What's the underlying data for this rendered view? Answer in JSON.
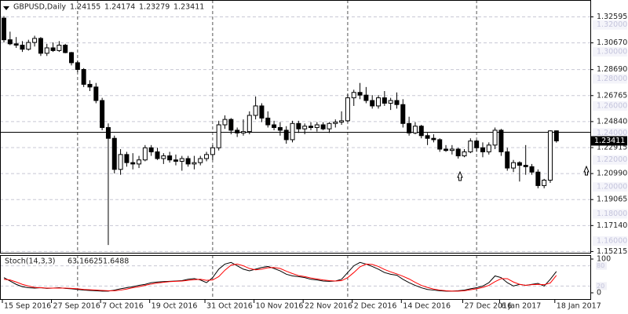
{
  "chart_data": [
    {
      "type": "candlestick",
      "symbol": "GBPUSD,Daily",
      "open": [
        1.325,
        1.309,
        1.306,
        1.305,
        1.302,
        1.307,
        1.31,
        1.299,
        1.303,
        1.301,
        1.305,
        1.2995,
        1.292,
        1.287,
        1.276,
        1.274,
        1.264,
        1.244,
        1.236,
        1.213,
        1.224,
        1.218,
        1.217,
        1.22,
        1.229,
        1.226,
        1.221,
        1.223,
        1.22,
        1.219,
        1.221,
        1.217,
        1.218,
        1.221,
        1.224,
        1.229,
        1.246,
        1.25,
        1.242,
        1.24,
        1.241,
        1.253,
        1.26,
        1.251,
        1.246,
        1.244,
        1.242,
        1.235,
        1.247,
        1.243,
        1.245,
        1.244,
        1.246,
        1.243,
        1.247,
        1.248,
        1.249,
        1.266,
        1.27,
        1.268,
        1.264,
        1.26,
        1.266,
        1.262,
        1.264,
        1.261,
        1.247,
        1.24,
        1.245,
        1.238,
        1.236,
        1.235,
        1.228,
        1.227,
        1.228,
        1.223,
        1.226,
        1.234,
        1.229,
        1.226,
        1.231,
        1.242,
        1.226,
        1.214,
        1.218,
        1.216,
        1.215,
        1.211,
        1.201,
        1.205,
        1.24155
      ],
      "high": [
        1.3265,
        1.315,
        1.311,
        1.308,
        1.309,
        1.312,
        1.311,
        1.306,
        1.307,
        1.308,
        1.306,
        1.3,
        1.2935,
        1.288,
        1.279,
        1.277,
        1.266,
        1.247,
        1.238,
        1.228,
        1.226,
        1.225,
        1.223,
        1.231,
        1.231,
        1.229,
        1.225,
        1.226,
        1.224,
        1.223,
        1.223,
        1.223,
        1.223,
        1.226,
        1.231,
        1.249,
        1.253,
        1.251,
        1.244,
        1.25,
        1.256,
        1.267,
        1.262,
        1.256,
        1.249,
        1.248,
        1.245,
        1.249,
        1.249,
        1.247,
        1.248,
        1.248,
        1.248,
        1.248,
        1.25,
        1.256,
        1.269,
        1.272,
        1.277,
        1.274,
        1.268,
        1.268,
        1.271,
        1.266,
        1.27,
        1.265,
        1.252,
        1.248,
        1.246,
        1.24,
        1.239,
        1.236,
        1.231,
        1.231,
        1.229,
        1.228,
        1.236,
        1.235,
        1.233,
        1.233,
        1.244,
        1.243,
        1.229,
        1.22,
        1.219,
        1.231,
        1.217,
        1.213,
        1.206,
        1.242,
        1.24174
      ],
      "low": [
        1.307,
        1.305,
        1.303,
        1.3,
        1.301,
        1.304,
        1.297,
        1.297,
        1.3,
        1.3,
        1.299,
        1.29,
        1.285,
        1.274,
        1.271,
        1.262,
        1.242,
        1.157,
        1.21,
        1.209,
        1.215,
        1.213,
        1.214,
        1.219,
        1.223,
        1.22,
        1.217,
        1.218,
        1.216,
        1.212,
        1.215,
        1.213,
        1.216,
        1.219,
        1.22,
        1.227,
        1.243,
        1.239,
        1.237,
        1.238,
        1.239,
        1.25,
        1.248,
        1.244,
        1.242,
        1.238,
        1.232,
        1.233,
        1.24,
        1.239,
        1.242,
        1.241,
        1.242,
        1.24,
        1.244,
        1.246,
        1.248,
        1.26,
        1.265,
        1.262,
        1.258,
        1.258,
        1.26,
        1.257,
        1.258,
        1.244,
        1.238,
        1.239,
        1.236,
        1.231,
        1.233,
        1.226,
        1.226,
        1.224,
        1.221,
        1.222,
        1.225,
        1.226,
        1.222,
        1.224,
        1.228,
        1.223,
        1.212,
        1.211,
        1.204,
        1.209,
        1.209,
        1.199,
        1.199,
        1.203,
        1.23279
      ],
      "close": [
        1.309,
        1.306,
        1.305,
        1.302,
        1.307,
        1.31,
        1.299,
        1.303,
        1.301,
        1.305,
        1.2995,
        1.292,
        1.287,
        1.276,
        1.274,
        1.264,
        1.244,
        1.236,
        1.213,
        1.224,
        1.218,
        1.217,
        1.22,
        1.229,
        1.226,
        1.221,
        1.223,
        1.22,
        1.219,
        1.221,
        1.217,
        1.218,
        1.221,
        1.224,
        1.229,
        1.246,
        1.25,
        1.242,
        1.24,
        1.241,
        1.253,
        1.26,
        1.251,
        1.246,
        1.244,
        1.242,
        1.235,
        1.247,
        1.243,
        1.245,
        1.244,
        1.246,
        1.243,
        1.247,
        1.248,
        1.249,
        1.266,
        1.27,
        1.268,
        1.264,
        1.26,
        1.266,
        1.262,
        1.264,
        1.261,
        1.247,
        1.24,
        1.245,
        1.238,
        1.236,
        1.235,
        1.228,
        1.227,
        1.228,
        1.223,
        1.226,
        1.234,
        1.229,
        1.226,
        1.231,
        1.242,
        1.226,
        1.214,
        1.218,
        1.216,
        1.215,
        1.211,
        1.201,
        1.205,
        1.2415,
        1.23411
      ],
      "up_color": "#ffffff",
      "down_color": "#000000",
      "ylim": [
        1.15124,
        1.33845
      ],
      "yticks": [
        1.32595,
        {
          "value": 1.3067,
          "label": "1.30670"
        },
        {
          "value": 1.2869,
          "label": "1.28690"
        },
        1.26765,
        {
          "value": 1.2484,
          "label": "1.24840"
        },
        1.22915,
        {
          "value": 1.2099,
          "label": "1.20990"
        },
        1.19065,
        {
          "value": 1.1714,
          "label": "1.17140"
        },
        1.15215
      ],
      "levels": [
        {
          "value": 1.32,
          "label": "1.32000"
        },
        {
          "value": 1.3,
          "label": "1.30000"
        },
        {
          "value": 1.28,
          "label": "1.28000"
        },
        {
          "value": 1.26,
          "label": "1.26000"
        },
        {
          "value": 1.24,
          "label": "1.24000"
        },
        {
          "value": 1.22,
          "label": "1.22000"
        },
        {
          "value": 1.2,
          "label": "1.20000"
        },
        {
          "value": 1.18,
          "label": "1.18000"
        },
        {
          "value": 1.16,
          "label": "1.16000"
        }
      ],
      "hline": 1.2405,
      "period_separators": [
        12,
        34,
        56,
        77
      ],
      "xticks": [
        {
          "value": 0,
          "label": "15 Sep 2016"
        },
        {
          "value": 8,
          "label": "27 Sep 2016"
        },
        {
          "value": 16,
          "label": "7 Oct 2016"
        },
        {
          "value": 24,
          "label": "19 Oct 2016"
        },
        {
          "value": 33,
          "label": "31 Oct 2016"
        },
        {
          "value": 41,
          "label": "10 Nov 2016"
        },
        {
          "value": 49,
          "label": "22 Nov 2016"
        },
        {
          "value": 57,
          "label": "2 Dec 2016"
        },
        {
          "value": 65,
          "label": "14 Dec 2016"
        },
        {
          "value": 75,
          "label": "27 Dec 2016"
        },
        {
          "value": 81,
          "label": "6 Jan 2017"
        },
        {
          "value": 90,
          "label": "18 Jan 2017"
        }
      ],
      "grid": true
    },
    {
      "type": "line",
      "title": "Stoch(14,3,3)",
      "series": [
        {
          "color": "#000000",
          "values": [
            45,
            35,
            25,
            18,
            15,
            14,
            15,
            13,
            14,
            15,
            13,
            12,
            10,
            8,
            7,
            6,
            5,
            5,
            8,
            12,
            15,
            18,
            22,
            25,
            30,
            32,
            33,
            34,
            35,
            36,
            40,
            42,
            38,
            30,
            45,
            70,
            85,
            90,
            80,
            70,
            65,
            70,
            75,
            78,
            72,
            65,
            55,
            50,
            48,
            45,
            40,
            38,
            35,
            34,
            35,
            40,
            60,
            80,
            90,
            85,
            78,
            70,
            60,
            55,
            52,
            40,
            30,
            22,
            15,
            10,
            8,
            6,
            5,
            5,
            6,
            8,
            12,
            15,
            20,
            30,
            50,
            45,
            30,
            20,
            25,
            22,
            25,
            28,
            20,
            40,
            63.1662
          ]
        },
        {
          "color": "#ff0000",
          "values": [
            40,
            38,
            32,
            25,
            20,
            16,
            15,
            14,
            14,
            14,
            14,
            13,
            12,
            10,
            9,
            8,
            7,
            6,
            6,
            8,
            11,
            15,
            18,
            22,
            26,
            29,
            31,
            33,
            34,
            35,
            37,
            39,
            40,
            37,
            38,
            48,
            67,
            82,
            85,
            80,
            72,
            68,
            70,
            74,
            75,
            72,
            64,
            57,
            51,
            48,
            44,
            41,
            38,
            36,
            35,
            36,
            45,
            60,
            77,
            85,
            84,
            78,
            69,
            62,
            56,
            49,
            41,
            31,
            22,
            16,
            11,
            8,
            6,
            5,
            5,
            6,
            9,
            12,
            16,
            22,
            33,
            42,
            42,
            32,
            25,
            22,
            24,
            25,
            24,
            29,
            51.6488
          ]
        }
      ],
      "ylim": [
        -18.6,
        111.6
      ],
      "yticks": [
        0,
        100
      ],
      "levels": [
        20,
        80
      ]
    }
  ]
}
